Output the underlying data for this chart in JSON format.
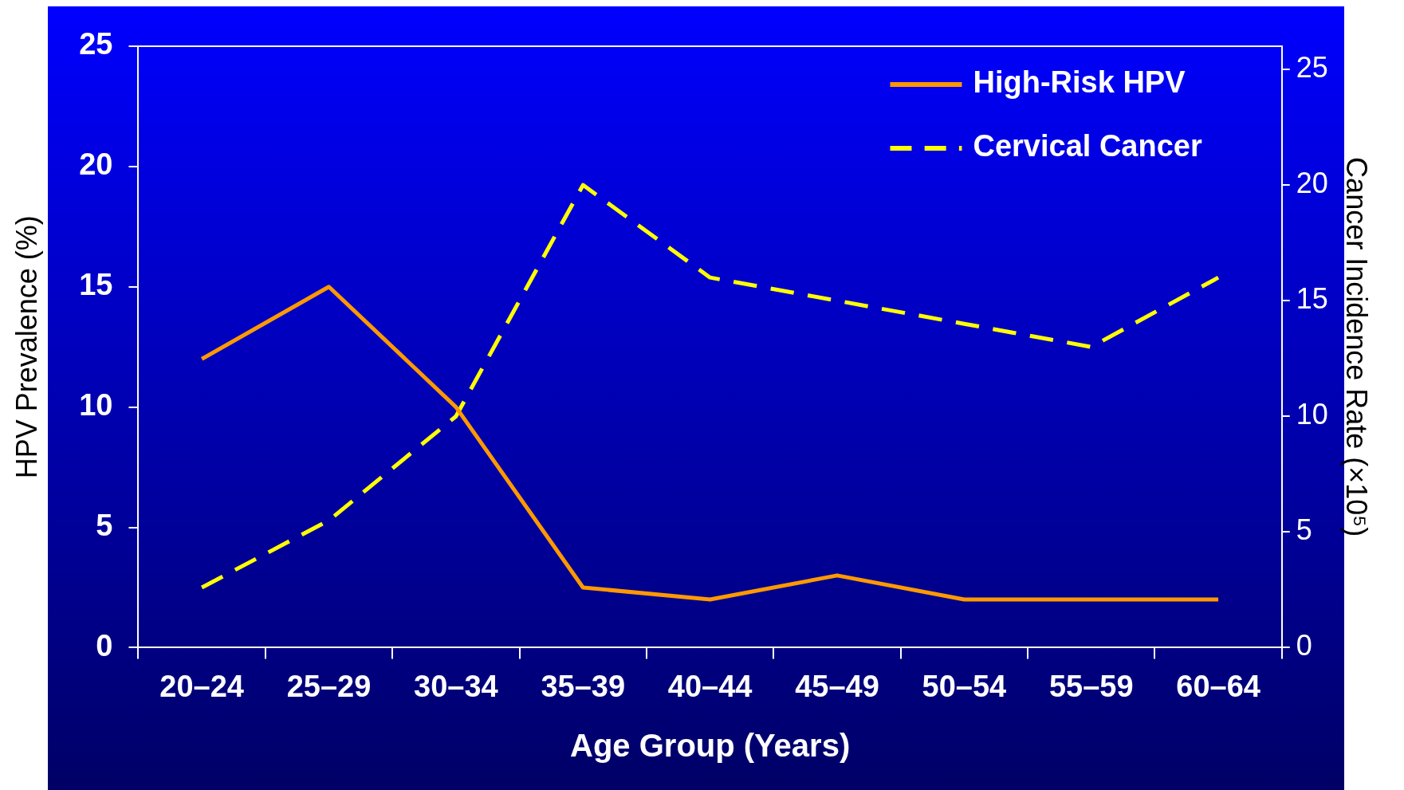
{
  "chart_data": {
    "type": "line",
    "xlabel": "Age Group (Years)",
    "ylabel": "HPV Prevalence (%)",
    "y2label": "Cancer Incidence Rate (×10⁵)",
    "categories": [
      "20–24",
      "25–29",
      "30–34",
      "35–39",
      "40–44",
      "45–49",
      "50–54",
      "55–59",
      "60–64"
    ],
    "series": [
      {
        "name": "High-Risk HPV",
        "color": "#ff9900",
        "values": [
          12,
          15,
          10,
          2.5,
          2,
          3,
          2,
          2,
          2
        ],
        "line_style": "solid"
      },
      {
        "name": "Cervical Cancer",
        "color": "#ffff00",
        "values": [
          2.6,
          5.5,
          10,
          20,
          16,
          15,
          14,
          13,
          16
        ],
        "axis": "y2",
        "line_style": "dashed"
      }
    ],
    "ylim": [
      0,
      25
    ],
    "yticks": [
      0,
      5,
      10,
      15,
      20,
      25
    ],
    "y2lim": [
      0,
      26
    ],
    "y2ticks": [
      0,
      5,
      10,
      15,
      20,
      25
    ],
    "legend": "top right",
    "grid": false
  }
}
